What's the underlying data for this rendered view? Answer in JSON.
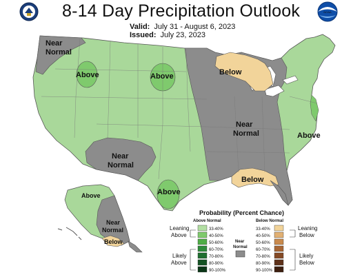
{
  "header": {
    "title": "8-14 Day Precipitation Outlook",
    "valid_label": "Valid:",
    "valid_value": "July 31 - August 6, 2023",
    "issued_label": "Issued:",
    "issued_value": "July 23, 2023"
  },
  "logos": {
    "left": "doc-seal-icon",
    "right": "noaa-logo-icon",
    "right_text": "NOAA"
  },
  "regions": {
    "nw_near": [
      "Near",
      "Normal"
    ],
    "idaho_above": "Above",
    "dakota_above": "Above",
    "mich_below": "Below",
    "central_near": [
      "Near",
      "Normal"
    ],
    "east_above": "Above",
    "sw_near": [
      "Near",
      "Normal"
    ],
    "texas_above": "Above",
    "gulf_below": "Below",
    "ak_above": "Above",
    "ak_near": [
      "Near",
      "Normal"
    ],
    "ak_below": "Below"
  },
  "legend": {
    "title": "Probability (Percent Chance)",
    "above_header": "Above Normal",
    "below_header": "Below Normal",
    "near_header": [
      "Near",
      "Normal"
    ],
    "leaning_above": [
      "Leaning",
      "Above"
    ],
    "likely_above": [
      "Likely",
      "Above"
    ],
    "leaning_below": [
      "Leaning",
      "Below"
    ],
    "likely_below": [
      "Likely",
      "Below"
    ],
    "ranges": [
      "33-40%",
      "40-50%",
      "50-60%",
      "60-70%",
      "70-80%",
      "80-90%",
      "90-100%"
    ],
    "above_colors": [
      "#b3dfa3",
      "#7fca6d",
      "#4fad46",
      "#2e8b3a",
      "#1f6e30",
      "#145324",
      "#0b3617"
    ],
    "below_colors": [
      "#f2d49a",
      "#e1b073",
      "#c98a4d",
      "#a86634",
      "#844a25",
      "#5f321a",
      "#3d1f10"
    ],
    "near_color": "#8c8c8c"
  },
  "colors": {
    "above": "#a9d89a",
    "above_darker": "#7fca6d",
    "near": "#8c8c8c",
    "below": "#f2d49a",
    "water": "#ffffff",
    "border": "#555555"
  }
}
